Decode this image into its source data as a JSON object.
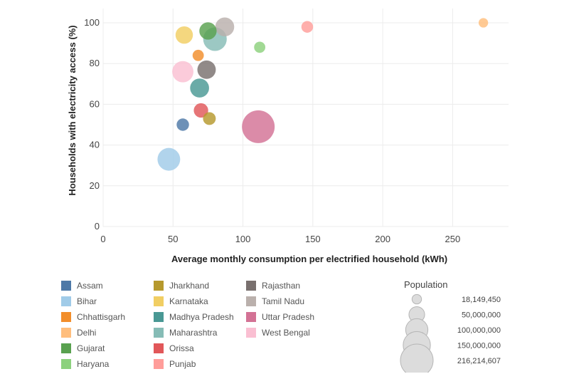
{
  "chart_data": {
    "type": "scatter",
    "xlabel": "Average monthly consumption per electrified household (kWh)",
    "ylabel": "Households with electricity access (%)",
    "xlim": [
      0,
      290
    ],
    "ylim": [
      0,
      107
    ],
    "xticks": [
      0,
      50,
      100,
      150,
      200,
      250
    ],
    "yticks": [
      0,
      20,
      40,
      60,
      80,
      100
    ],
    "grid": true,
    "series": [
      {
        "name": "Assam",
        "color": "#4e79a7",
        "x": 57,
        "y": 50,
        "population": 31000000
      },
      {
        "name": "Bihar",
        "color": "#a0cbe8",
        "x": 47,
        "y": 33,
        "population": 104000000
      },
      {
        "name": "Chhattisgarh",
        "color": "#f28e2b",
        "x": 68,
        "y": 84,
        "population": 25500000
      },
      {
        "name": "Delhi",
        "color": "#ffbe7d",
        "x": 272,
        "y": 100,
        "population": 18149450
      },
      {
        "name": "Gujarat",
        "color": "#59a14f",
        "x": 75,
        "y": 96,
        "population": 60400000
      },
      {
        "name": "Haryana",
        "color": "#8cd17d",
        "x": 112,
        "y": 88,
        "population": 25400000
      },
      {
        "name": "Jharkhand",
        "color": "#b6992d",
        "x": 76,
        "y": 53,
        "population": 33000000
      },
      {
        "name": "Karnataka",
        "color": "#f1ce63",
        "x": 58,
        "y": 94,
        "population": 61100000
      },
      {
        "name": "Madhya Pradesh",
        "color": "#499894",
        "x": 69,
        "y": 68,
        "population": 72600000
      },
      {
        "name": "Maharashtra",
        "color": "#86bcb6",
        "x": 80,
        "y": 92,
        "population": 112400000
      },
      {
        "name": "Orissa",
        "color": "#e15759",
        "x": 70,
        "y": 57,
        "population": 42000000
      },
      {
        "name": "Punjab",
        "color": "#ff9d9a",
        "x": 146,
        "y": 98,
        "population": 27700000
      },
      {
        "name": "Rajasthan",
        "color": "#79706e",
        "x": 74,
        "y": 77,
        "population": 68500000
      },
      {
        "name": "Tamil Nadu",
        "color": "#bab0ac",
        "x": 87,
        "y": 98,
        "population": 72100000
      },
      {
        "name": "Uttar Pradesh",
        "color": "#d37295",
        "x": 111,
        "y": 49,
        "population": 216214607
      },
      {
        "name": "West Bengal",
        "color": "#fabfd2",
        "x": 57,
        "y": 76,
        "population": 91300000
      }
    ],
    "size_legend": {
      "title": "Population",
      "values": [
        18149450,
        50000000,
        100000000,
        150000000,
        216214607
      ],
      "labels": [
        "18,149,450",
        "50,000,000",
        "100,000,000",
        "150,000,000",
        "216,214,607"
      ]
    }
  }
}
